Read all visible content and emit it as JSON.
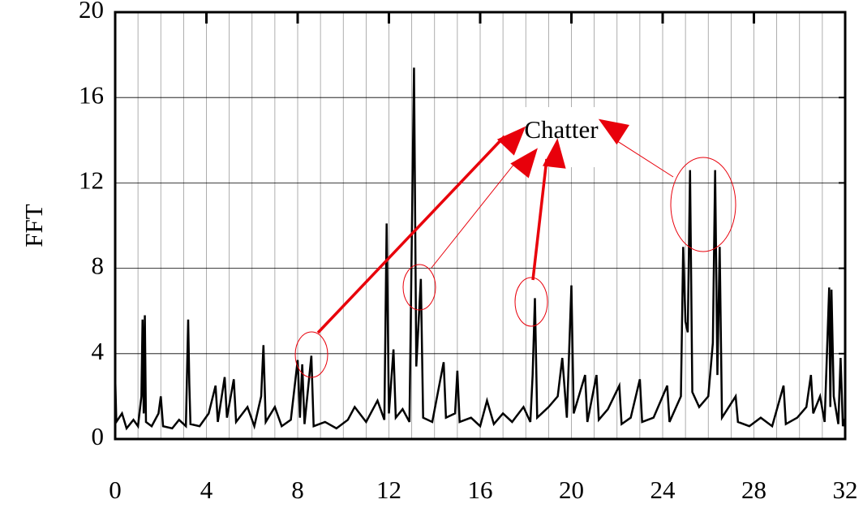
{
  "chart_data": {
    "type": "line",
    "y_label": "FFT",
    "annotation": "Chatter",
    "x": [
      0,
      0.05,
      0.3,
      0.5,
      0.8,
      1.0,
      1.15,
      1.2,
      1.25,
      1.3,
      1.35,
      1.6,
      1.9,
      2.0,
      2.1,
      2.5,
      2.8,
      3.1,
      3.2,
      3.25,
      3.3,
      3.7,
      4.1,
      4.4,
      4.5,
      4.8,
      4.9,
      5.2,
      5.3,
      5.8,
      6.1,
      6.4,
      6.5,
      6.6,
      7.0,
      7.3,
      7.7,
      8.0,
      8.1,
      8.2,
      8.3,
      8.6,
      8.7,
      9.2,
      9.7,
      10.2,
      10.5,
      11.0,
      11.5,
      11.8,
      11.9,
      12.0,
      12.2,
      12.3,
      12.6,
      12.9,
      13.1,
      13.2,
      13.4,
      13.5,
      13.9,
      14.4,
      14.5,
      14.9,
      15.0,
      15.1,
      15.6,
      16.0,
      16.3,
      16.6,
      17.0,
      17.4,
      17.9,
      18.2,
      18.3,
      18.4,
      18.5,
      19.0,
      19.4,
      19.6,
      19.8,
      20.0,
      20.1,
      20.6,
      20.7,
      21.1,
      21.2,
      21.6,
      22.1,
      22.2,
      22.6,
      23.0,
      23.1,
      23.6,
      24.2,
      24.3,
      24.8,
      24.9,
      25.0,
      25.1,
      25.2,
      25.3,
      25.6,
      26.0,
      26.2,
      26.3,
      26.4,
      26.5,
      26.6,
      27.2,
      27.3,
      27.8,
      28.3,
      28.8,
      29.3,
      29.4,
      29.9,
      30.3,
      30.5,
      30.6,
      30.9,
      31.1,
      31.3,
      31.35,
      31.4,
      31.5,
      31.7,
      31.8,
      31.9,
      32
    ],
    "series": [
      {
        "color": "#000000",
        "values": [
          3.0,
          0.8,
          1.2,
          0.5,
          0.9,
          0.6,
          2.0,
          5.6,
          1.2,
          5.8,
          0.8,
          0.6,
          1.2,
          2.0,
          0.6,
          0.5,
          0.9,
          0.6,
          5.6,
          2.6,
          0.7,
          0.6,
          1.2,
          2.5,
          0.8,
          2.9,
          1.0,
          2.8,
          0.8,
          1.5,
          0.6,
          2.0,
          4.4,
          0.8,
          1.5,
          0.6,
          0.9,
          3.7,
          1.0,
          3.5,
          0.7,
          3.9,
          0.6,
          0.8,
          0.5,
          0.9,
          1.5,
          0.8,
          1.8,
          0.9,
          10.1,
          1.2,
          4.2,
          1.0,
          1.4,
          0.8,
          17.4,
          3.4,
          7.5,
          1.0,
          0.8,
          3.6,
          1.0,
          1.2,
          3.2,
          0.8,
          1.0,
          0.6,
          1.8,
          0.7,
          1.2,
          0.8,
          1.5,
          0.8,
          3.0,
          6.6,
          1.0,
          1.5,
          2.0,
          3.8,
          1.0,
          7.2,
          1.2,
          3.0,
          0.8,
          3.0,
          0.9,
          1.4,
          2.5,
          0.7,
          1.0,
          2.8,
          0.8,
          1.0,
          2.5,
          0.8,
          2.0,
          9.0,
          5.5,
          5.0,
          12.6,
          2.2,
          1.5,
          2.0,
          4.5,
          12.6,
          3.0,
          9.0,
          1.0,
          2.0,
          0.8,
          0.6,
          1.0,
          0.6,
          2.5,
          0.7,
          1.0,
          1.5,
          3.0,
          1.2,
          2.0,
          0.8,
          7.1,
          1.5,
          7.0,
          2.0,
          0.7,
          3.8,
          0.6,
          1.0
        ]
      }
    ],
    "xlim": [
      0,
      32
    ],
    "xticks": [
      0,
      4,
      8,
      12,
      16,
      20,
      24,
      28,
      32
    ],
    "xminorticks": [
      0,
      1,
      2,
      3,
      4,
      5,
      6,
      7,
      8,
      9,
      10,
      11,
      12,
      13,
      14,
      15,
      16,
      17,
      18,
      19,
      20,
      21,
      22,
      23,
      24,
      25,
      26,
      27,
      28,
      29,
      30,
      31,
      32
    ],
    "ylim": [
      0,
      20
    ],
    "yticks": [
      0,
      4,
      8,
      12,
      16,
      20
    ],
    "grid": true
  }
}
